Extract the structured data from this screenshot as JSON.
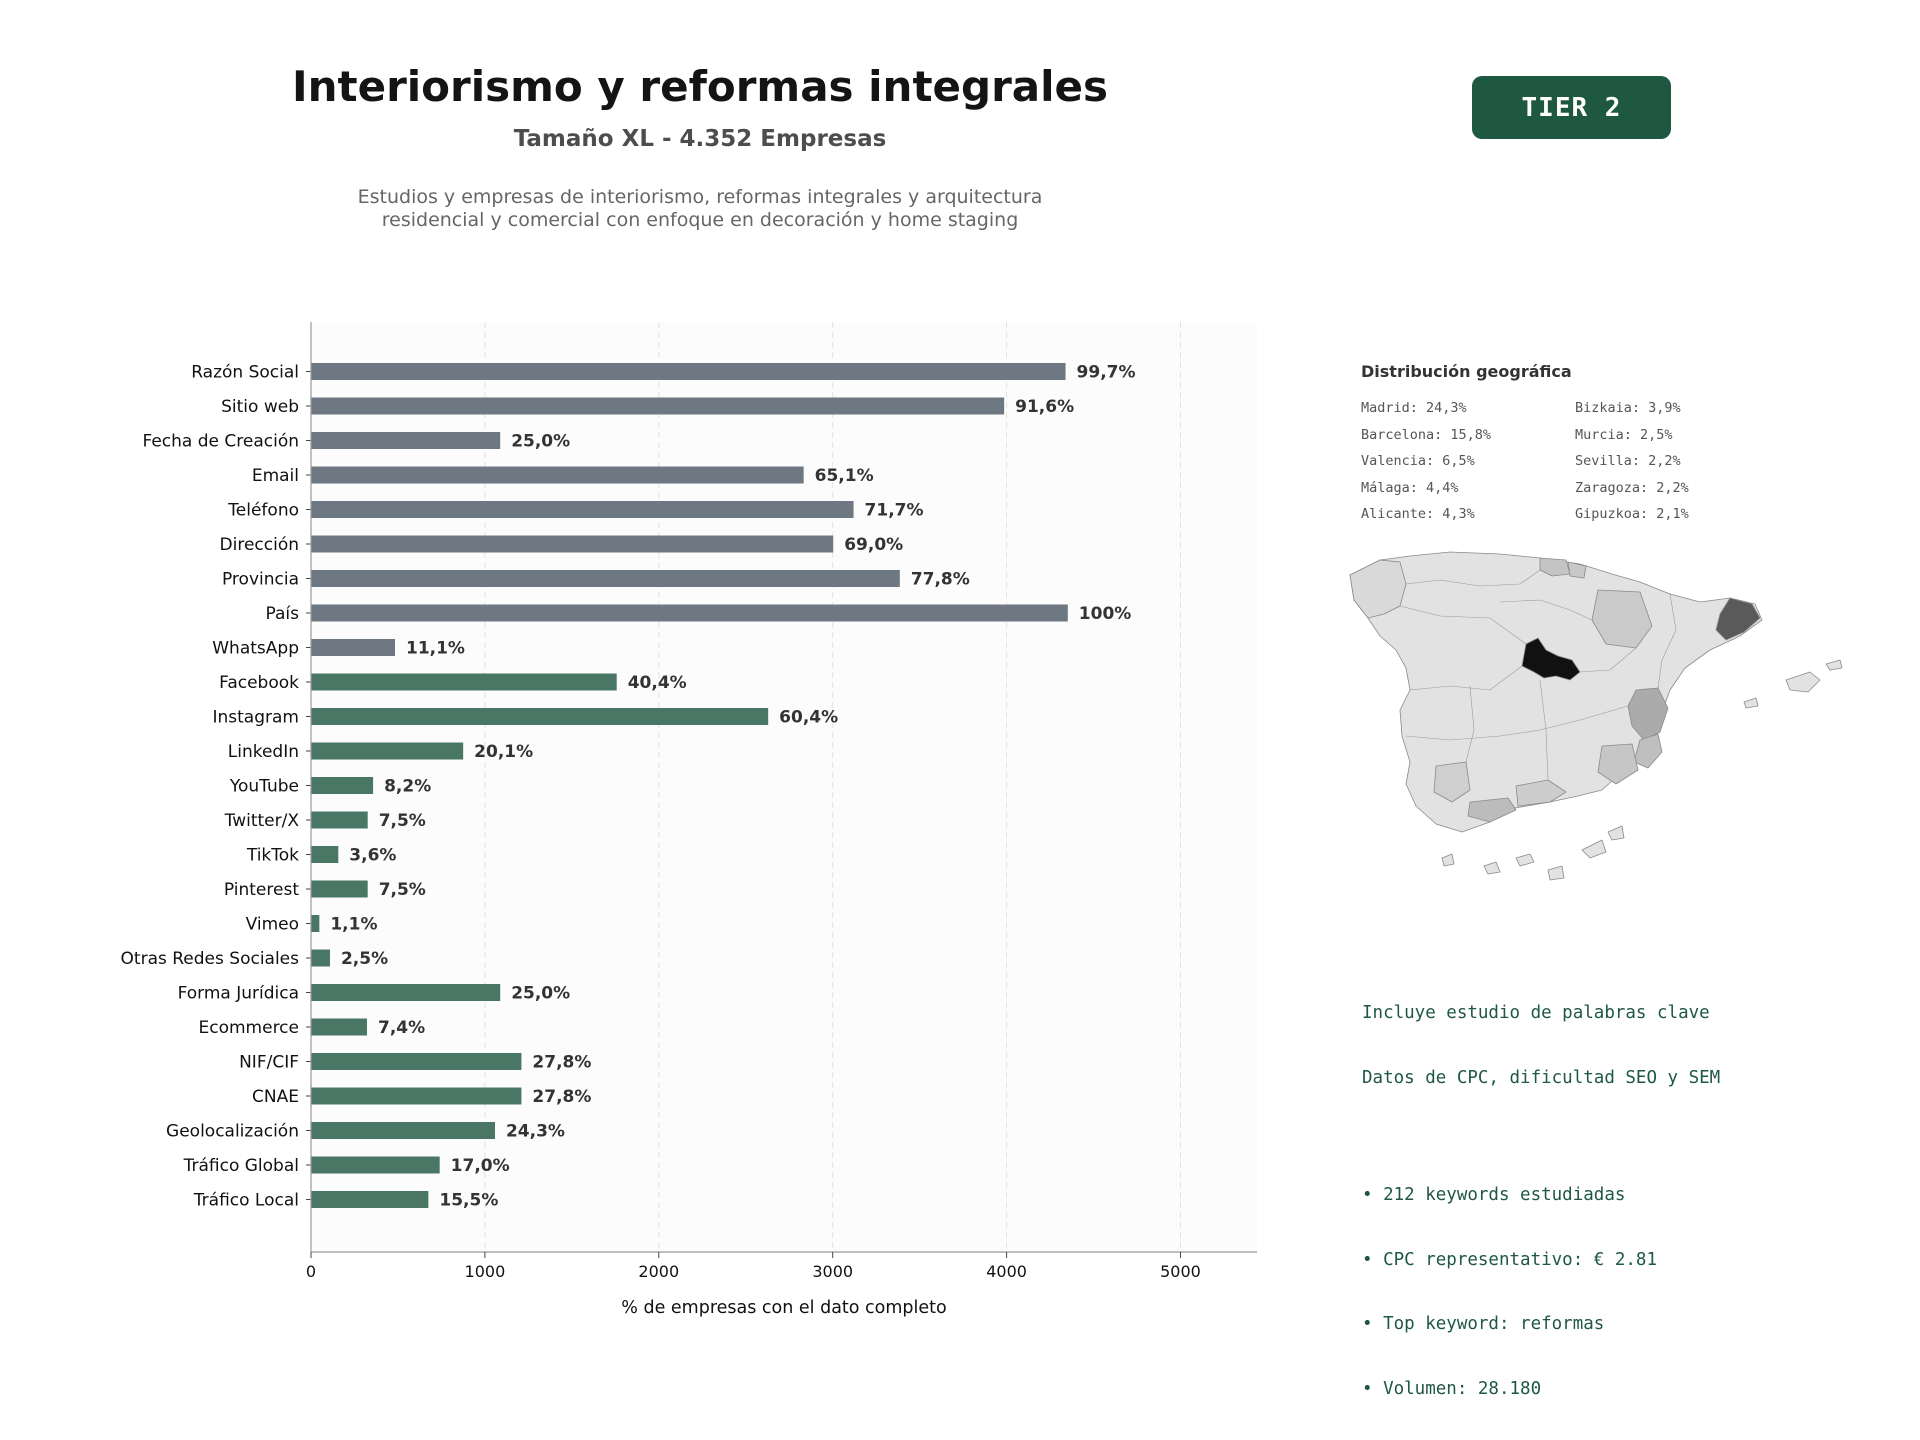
{
  "header": {
    "title": "Interiorismo y reformas integrales",
    "subtitle": "Tamaño XL - 4.352 Empresas",
    "description": "Estudios y empresas de interiorismo, reformas integrales y arquitectura residencial y comercial con enfoque en decoración y home staging",
    "tier_label": "TIER 2"
  },
  "colors": {
    "basic_bar": "#6e7883",
    "social_bar": "#4a7765",
    "accent": "#1e5841"
  },
  "chart_data": {
    "type": "bar",
    "orientation": "horizontal",
    "xlabel": "% de empresas con el dato completo",
    "ylabel": "",
    "xlim": [
      0,
      5440
    ],
    "xticks": [
      0,
      1000,
      2000,
      3000,
      4000,
      5000
    ],
    "grid": "vertical dashed",
    "categories": [
      "Razón Social",
      "Sitio web",
      "Fecha de Creación",
      "Email",
      "Teléfono",
      "Dirección",
      "Provincia",
      "País",
      "WhatsApp",
      "Facebook",
      "Instagram",
      "LinkedIn",
      "YouTube",
      "Twitter/X",
      "TikTok",
      "Pinterest",
      "Vimeo",
      "Otras Redes Sociales",
      "Forma Jurídica",
      "Ecommerce",
      "NIF/CIF",
      "CNAE",
      "Geolocalización",
      "Tráfico Global",
      "Tráfico Local"
    ],
    "values": [
      4339,
      3986,
      1088,
      2833,
      3120,
      3003,
      3386,
      4352,
      483,
      1758,
      2629,
      875,
      357,
      326,
      157,
      326,
      48,
      109,
      1088,
      322,
      1210,
      1210,
      1058,
      740,
      675
    ],
    "labels": [
      "99,7%",
      "91,6%",
      "25,0%",
      "65,1%",
      "71,7%",
      "69,0%",
      "77,8%",
      "100%",
      "11,1%",
      "40,4%",
      "60,4%",
      "20,1%",
      "8,2%",
      "7,5%",
      "3,6%",
      "7,5%",
      "1,1%",
      "2,5%",
      "25,0%",
      "7,4%",
      "27,8%",
      "27,8%",
      "24,3%",
      "17,0%",
      "15,5%"
    ],
    "groups": [
      "basic",
      "basic",
      "basic",
      "basic",
      "basic",
      "basic",
      "basic",
      "basic",
      "basic",
      "social",
      "social",
      "social",
      "social",
      "social",
      "social",
      "social",
      "social",
      "social",
      "social",
      "social",
      "social",
      "social",
      "social",
      "social",
      "social"
    ]
  },
  "geo": {
    "title": "Distribución geográfica",
    "items": [
      "Madrid: 24,3%",
      "Bizkaia: 3,9%",
      "Barcelona: 15,8%",
      "Murcia: 2,5%",
      "Valencia: 6,5%",
      "Sevilla: 2,2%",
      "Málaga: 4,4%",
      "Zaragoza: 2,2%",
      "Alicante: 4,3%",
      "Gipuzkoa: 2,1%"
    ]
  },
  "keywords": {
    "line1": "Incluye estudio de palabras clave",
    "line2": "Datos de CPC, dificultad SEO y SEM",
    "bullets": [
      "• 212 keywords estudiadas",
      "• CPC representativo: € 2.81",
      "• Top keyword: reformas",
      "• Volumen: 28.180"
    ]
  }
}
